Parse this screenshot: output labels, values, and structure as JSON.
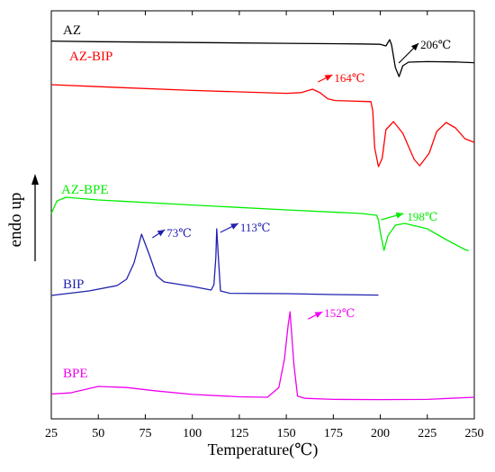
{
  "chart_data": {
    "type": "line",
    "xlabel": "Temperature(℃)",
    "ylabel": "endo up",
    "xlim": [
      25,
      250
    ],
    "x_ticks": [
      "25",
      "50",
      "75",
      "100",
      "125",
      "150",
      "175",
      "200",
      "225",
      "250"
    ],
    "y_ticks_shown": false,
    "legend": "inline curve labels",
    "series": [
      {
        "name": "AZ",
        "color": "#000000",
        "points": [
          [
            25,
            0.92
          ],
          [
            50,
            0.885
          ],
          [
            100,
            0.84
          ],
          [
            150,
            0.795
          ],
          [
            190,
            0.76
          ],
          [
            200,
            0.74
          ],
          [
            203,
            0.65
          ],
          [
            205,
            1.0
          ],
          [
            206,
            0.7
          ],
          [
            208,
            -0.55
          ],
          [
            210,
            -1.05
          ],
          [
            212,
            -0.45
          ],
          [
            215,
            -0.25
          ],
          [
            225,
            -0.22
          ],
          [
            240,
            -0.24
          ],
          [
            250,
            -0.28
          ]
        ]
      },
      {
        "name": "AZ-BIP",
        "color": "#ff0000",
        "points": [
          [
            25,
            0.9
          ],
          [
            50,
            0.79
          ],
          [
            100,
            0.58
          ],
          [
            150,
            0.42
          ],
          [
            158,
            0.46
          ],
          [
            164,
            0.65
          ],
          [
            168,
            0.45
          ],
          [
            172,
            0.12
          ],
          [
            176,
            0.02
          ],
          [
            195,
            -0.04
          ],
          [
            196,
            -0.55
          ],
          [
            197,
            -2.6
          ],
          [
            199,
            -3.65
          ],
          [
            201,
            -3.2
          ],
          [
            203,
            -1.6
          ],
          [
            207,
            -1.15
          ],
          [
            212,
            -1.8
          ],
          [
            218,
            -3.25
          ],
          [
            221,
            -3.6
          ],
          [
            226,
            -2.9
          ],
          [
            230,
            -1.7
          ],
          [
            235,
            -1.2
          ],
          [
            240,
            -1.5
          ],
          [
            245,
            -2.1
          ],
          [
            250,
            -2.3
          ]
        ]
      },
      {
        "name": "AZ-BPE",
        "color": "#00ee00",
        "points": [
          [
            25,
            0.35
          ],
          [
            28,
            1.05
          ],
          [
            33,
            1.25
          ],
          [
            50,
            1.1
          ],
          [
            100,
            0.82
          ],
          [
            150,
            0.55
          ],
          [
            190,
            0.35
          ],
          [
            198,
            0.25
          ],
          [
            199,
            0.0
          ],
          [
            200,
            -0.7
          ],
          [
            202,
            -1.7
          ],
          [
            204,
            -0.9
          ],
          [
            208,
            -0.3
          ],
          [
            213,
            -0.2
          ],
          [
            225,
            -0.5
          ],
          [
            235,
            -1.1
          ],
          [
            245,
            -1.65
          ],
          [
            247,
            -1.72
          ]
        ]
      },
      {
        "name": "BIP",
        "color": "#2020b0",
        "points": [
          [
            25,
            -0.6
          ],
          [
            45,
            -0.35
          ],
          [
            60,
            -0.05
          ],
          [
            65,
            0.3
          ],
          [
            69,
            1.2
          ],
          [
            73,
            2.8
          ],
          [
            77,
            1.7
          ],
          [
            81,
            0.5
          ],
          [
            85,
            0.15
          ],
          [
            100,
            -0.1
          ],
          [
            110,
            -0.3
          ],
          [
            111.5,
            0.0
          ],
          [
            112.5,
            1.5
          ],
          [
            113,
            3.1
          ],
          [
            114,
            1.3
          ],
          [
            115,
            -0.35
          ],
          [
            120,
            -0.48
          ],
          [
            150,
            -0.5
          ],
          [
            175,
            -0.55
          ],
          [
            199,
            -0.58
          ]
        ]
      },
      {
        "name": "BPE",
        "color": "#ee00ee",
        "points": [
          [
            25,
            -0.6
          ],
          [
            35,
            -0.55
          ],
          [
            50,
            -0.25
          ],
          [
            65,
            -0.3
          ],
          [
            80,
            -0.45
          ],
          [
            100,
            -0.62
          ],
          [
            125,
            -0.73
          ],
          [
            140,
            -0.75
          ],
          [
            146,
            -0.3
          ],
          [
            149,
            1.0
          ],
          [
            151,
            2.6
          ],
          [
            152,
            3.2
          ],
          [
            154,
            0.8
          ],
          [
            156,
            -0.7
          ],
          [
            160,
            -0.8
          ],
          [
            175,
            -0.85
          ],
          [
            200,
            -0.86
          ],
          [
            225,
            -0.85
          ],
          [
            250,
            -0.75
          ]
        ]
      }
    ],
    "annotations": [
      {
        "text": "206℃",
        "x": 206,
        "series": "AZ",
        "color": "#000000"
      },
      {
        "text": "164℃",
        "x": 164,
        "series": "AZ-BIP",
        "color": "#ff0000"
      },
      {
        "text": "198℃",
        "x": 198,
        "series": "AZ-BPE",
        "color": "#00ee00"
      },
      {
        "text": "73℃",
        "x": 73,
        "series": "BIP",
        "color": "#2020b0"
      },
      {
        "text": "113℃",
        "x": 113,
        "series": "BIP",
        "color": "#2020b0"
      },
      {
        "text": "152℃",
        "x": 152,
        "series": "BPE",
        "color": "#ee00ee"
      }
    ]
  }
}
